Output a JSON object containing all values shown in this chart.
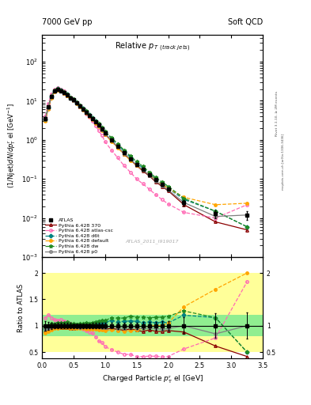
{
  "title_left": "7000 GeV pp",
  "title_right": "Soft QCD",
  "plot_title": "Relative p$_{\\rm T}$ $_{\\rm (track\\ jets)}$",
  "xlabel": "Charged Particle $p_{\\rm T}^{\\rm r}$ el [GeV]",
  "ylabel_main": "(1/Njet)dN/dp$^{\\rm r}_{\\rm T}$ el [GeV$^{-1}$]",
  "ylabel_ratio": "Ratio to ATLAS",
  "right_label_top": "Rivet 3.1.10, ≥ 2M events",
  "right_label_bot": "mcplots.cern.ch [arXiv:1306.3436]",
  "watermark": "ATLAS_2011_I919017",
  "atlas_data_x": [
    0.05,
    0.1,
    0.15,
    0.2,
    0.25,
    0.3,
    0.35,
    0.4,
    0.45,
    0.5,
    0.55,
    0.6,
    0.65,
    0.7,
    0.75,
    0.8,
    0.85,
    0.9,
    0.95,
    1.0,
    1.1,
    1.2,
    1.3,
    1.4,
    1.5,
    1.6,
    1.7,
    1.8,
    1.9,
    2.0,
    2.25,
    2.75,
    3.25
  ],
  "atlas_data_y": [
    3.5,
    7.0,
    13.0,
    18.0,
    20.0,
    18.0,
    16.0,
    14.0,
    12.0,
    10.5,
    9.0,
    7.5,
    6.2,
    5.2,
    4.3,
    3.5,
    2.9,
    2.4,
    1.9,
    1.5,
    1.0,
    0.7,
    0.48,
    0.33,
    0.24,
    0.18,
    0.13,
    0.095,
    0.073,
    0.055,
    0.025,
    0.013,
    0.012
  ],
  "atlas_data_yerr": [
    0.3,
    0.5,
    0.8,
    1.0,
    1.0,
    0.9,
    0.8,
    0.7,
    0.6,
    0.5,
    0.4,
    0.35,
    0.3,
    0.25,
    0.2,
    0.18,
    0.15,
    0.12,
    0.1,
    0.08,
    0.05,
    0.04,
    0.03,
    0.02,
    0.015,
    0.012,
    0.009,
    0.007,
    0.006,
    0.005,
    0.004,
    0.003,
    0.003
  ],
  "py370_x": [
    0.05,
    0.1,
    0.15,
    0.2,
    0.25,
    0.3,
    0.35,
    0.4,
    0.45,
    0.5,
    0.55,
    0.6,
    0.65,
    0.7,
    0.75,
    0.8,
    0.85,
    0.9,
    0.95,
    1.0,
    1.1,
    1.2,
    1.3,
    1.4,
    1.5,
    1.6,
    1.7,
    1.8,
    1.9,
    2.0,
    2.25,
    2.75,
    3.25
  ],
  "py370_y": [
    3.2,
    6.5,
    12.5,
    17.5,
    19.5,
    17.5,
    15.5,
    13.5,
    11.5,
    10.0,
    8.7,
    7.2,
    6.0,
    5.0,
    4.1,
    3.4,
    2.8,
    2.3,
    1.8,
    1.4,
    0.95,
    0.65,
    0.44,
    0.31,
    0.22,
    0.16,
    0.12,
    0.085,
    0.065,
    0.05,
    0.022,
    0.008,
    0.005
  ],
  "py_csc_x": [
    0.05,
    0.1,
    0.15,
    0.2,
    0.25,
    0.3,
    0.35,
    0.4,
    0.45,
    0.5,
    0.55,
    0.6,
    0.65,
    0.7,
    0.75,
    0.8,
    0.85,
    0.9,
    0.95,
    1.0,
    1.1,
    1.2,
    1.3,
    1.4,
    1.5,
    1.6,
    1.7,
    1.8,
    1.9,
    2.0,
    2.25,
    2.75,
    3.25
  ],
  "py_csc_y": [
    4.0,
    8.5,
    15.0,
    20.0,
    22.0,
    20.0,
    17.5,
    15.0,
    12.5,
    10.5,
    8.8,
    7.2,
    5.8,
    4.7,
    3.8,
    3.0,
    2.3,
    1.7,
    1.3,
    0.9,
    0.55,
    0.35,
    0.22,
    0.15,
    0.1,
    0.075,
    0.055,
    0.04,
    0.03,
    0.023,
    0.014,
    0.01,
    0.022
  ],
  "py_d6t_x": [
    0.05,
    0.1,
    0.15,
    0.2,
    0.25,
    0.3,
    0.35,
    0.4,
    0.45,
    0.5,
    0.55,
    0.6,
    0.65,
    0.7,
    0.75,
    0.8,
    0.85,
    0.9,
    0.95,
    1.0,
    1.1,
    1.2,
    1.3,
    1.4,
    1.5,
    1.6,
    1.7,
    1.8,
    1.9,
    2.0,
    2.25,
    2.75,
    3.25
  ],
  "py_d6t_y": [
    3.3,
    6.8,
    13.0,
    18.0,
    20.5,
    18.5,
    16.5,
    14.5,
    12.0,
    10.5,
    9.0,
    7.5,
    6.3,
    5.3,
    4.4,
    3.6,
    3.0,
    2.5,
    2.0,
    1.6,
    1.1,
    0.75,
    0.52,
    0.36,
    0.26,
    0.19,
    0.14,
    0.1,
    0.078,
    0.058,
    0.03,
    0.015,
    0.006
  ],
  "py_def_x": [
    0.05,
    0.1,
    0.15,
    0.2,
    0.25,
    0.3,
    0.35,
    0.4,
    0.45,
    0.5,
    0.55,
    0.6,
    0.65,
    0.7,
    0.75,
    0.8,
    0.85,
    0.9,
    0.95,
    1.0,
    1.1,
    1.2,
    1.3,
    1.4,
    1.5,
    1.6,
    1.7,
    1.8,
    1.9,
    2.0,
    2.25,
    2.75,
    3.25
  ],
  "py_def_y": [
    3.0,
    6.2,
    12.0,
    17.0,
    19.0,
    17.5,
    15.5,
    13.5,
    11.5,
    10.0,
    8.5,
    7.1,
    5.9,
    4.9,
    4.0,
    3.3,
    2.7,
    2.2,
    1.75,
    1.35,
    0.92,
    0.63,
    0.43,
    0.3,
    0.22,
    0.17,
    0.13,
    0.095,
    0.073,
    0.058,
    0.034,
    0.022,
    0.024
  ],
  "py_dw_x": [
    0.05,
    0.1,
    0.15,
    0.2,
    0.25,
    0.3,
    0.35,
    0.4,
    0.45,
    0.5,
    0.55,
    0.6,
    0.65,
    0.7,
    0.75,
    0.8,
    0.85,
    0.9,
    0.95,
    1.0,
    1.1,
    1.2,
    1.3,
    1.4,
    1.5,
    1.6,
    1.7,
    1.8,
    1.9,
    2.0,
    2.25,
    2.75,
    3.25
  ],
  "py_dw_y": [
    3.4,
    7.0,
    13.5,
    18.5,
    21.0,
    19.0,
    17.0,
    15.0,
    12.5,
    11.0,
    9.3,
    7.8,
    6.5,
    5.5,
    4.5,
    3.7,
    3.1,
    2.6,
    2.1,
    1.65,
    1.15,
    0.8,
    0.55,
    0.39,
    0.28,
    0.21,
    0.15,
    0.11,
    0.085,
    0.065,
    0.032,
    0.015,
    0.006
  ],
  "py_p0_x": [
    0.05,
    0.1,
    0.15,
    0.2,
    0.25,
    0.3,
    0.35,
    0.4,
    0.45,
    0.5,
    0.55,
    0.6,
    0.65,
    0.7,
    0.75,
    0.8,
    0.85,
    0.9,
    0.95,
    1.0,
    1.1,
    1.2,
    1.3,
    1.4,
    1.5,
    1.6,
    1.7,
    1.8,
    1.9,
    2.0,
    2.25,
    2.75,
    3.25
  ],
  "py_p0_y": [
    3.3,
    6.7,
    12.8,
    17.8,
    20.0,
    18.0,
    16.0,
    14.0,
    12.0,
    10.3,
    8.8,
    7.3,
    6.1,
    5.1,
    4.2,
    3.45,
    2.85,
    2.35,
    1.85,
    1.45,
    0.98,
    0.67,
    0.46,
    0.32,
    0.23,
    0.17,
    0.125,
    0.09,
    0.068,
    0.052,
    0.025,
    0.011,
    0.012
  ],
  "color_atlas": "#000000",
  "color_370": "#8b0000",
  "color_csc": "#ff69b4",
  "color_d6t": "#008080",
  "color_default": "#ffa500",
  "color_dw": "#228b22",
  "color_p0": "#808080",
  "ylim_main": [
    0.001,
    500
  ],
  "ylim_ratio": [
    0.38,
    2.3
  ],
  "xlim": [
    0,
    3.5
  ],
  "ratio_band_yellow": [
    0.5,
    2.0
  ],
  "ratio_band_green": [
    0.8,
    1.2
  ],
  "ratio_band_x_edges": [
    0.0,
    0.5,
    1.0,
    1.5,
    2.0,
    2.5,
    3.0,
    3.5
  ]
}
